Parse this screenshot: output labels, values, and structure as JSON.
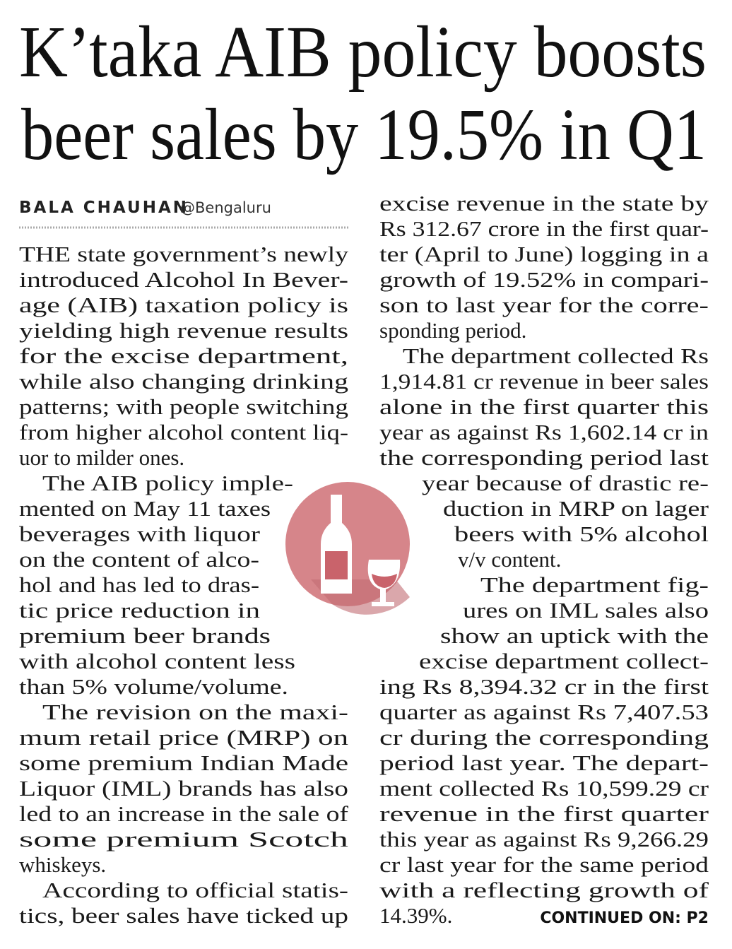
{
  "headline": {
    "lines": [
      "K’taka AIB policy boosts",
      "beer sales by 19.5% in Q1"
    ]
  },
  "byline": {
    "author": "BALA CHAUHAN",
    "location": "@Bengaluru"
  },
  "columns": [
    {
      "lines": [
        "THE state government’s newly",
        "introduced Alcohol In Bever-",
        "age (AIB) taxation policy is",
        "yielding high revenue results",
        "for the excise department,",
        "while also changing drinking",
        "patterns; with people switching",
        "from higher alcohol content liq-",
        "uor to milder ones.",
        "The AIB policy imple-",
        "mented on May 11 taxes",
        "beverages with liquor",
        "on the content of alco-",
        "hol and has led to dras-",
        "tic price reduction in",
        "premium beer brands",
        "with alcohol content less",
        "than 5% volume/volume.",
        "The revision on the maxi-",
        "mum retail price (MRP) on",
        "some premium Indian Made",
        "Liquor (IML) brands has also",
        "led to an increase in the sale of",
        "some premium Scotch",
        "whiskeys.",
        "According to official statis-",
        "tics, beer sales have ticked up"
      ]
    },
    {
      "lines": [
        "excise revenue in the state by",
        "Rs 312.67 crore in the first quar-",
        "ter (April to June) logging in a",
        "growth of 19.52% in compari-",
        "son to last year for the corre-",
        "sponding period.",
        "The department collected Rs",
        "1,914.81 cr revenue in beer sales",
        "alone in the first quarter this",
        "year as against Rs 1,602.14 cr in",
        "the corresponding period last",
        "year because of drastic re-",
        "duction in MRP on lager",
        "beers with 5% alcohol",
        "v/v content.",
        "The department fig-",
        "ures on IML sales also",
        "show an uptick with the",
        "excise department collect-",
        "ing Rs 8,394.32 cr in the first",
        "quarter as against Rs 7,407.53",
        "cr during the corresponding",
        "period last year. The depart-",
        "ment collected Rs 10,599.29 cr",
        "revenue in the first quarter",
        "this year as against Rs 9,266.29",
        "cr last year for the same period",
        "with a reflecting growth of",
        "14.39%."
      ]
    }
  ],
  "continued": "CONTINUED ON: P2"
}
